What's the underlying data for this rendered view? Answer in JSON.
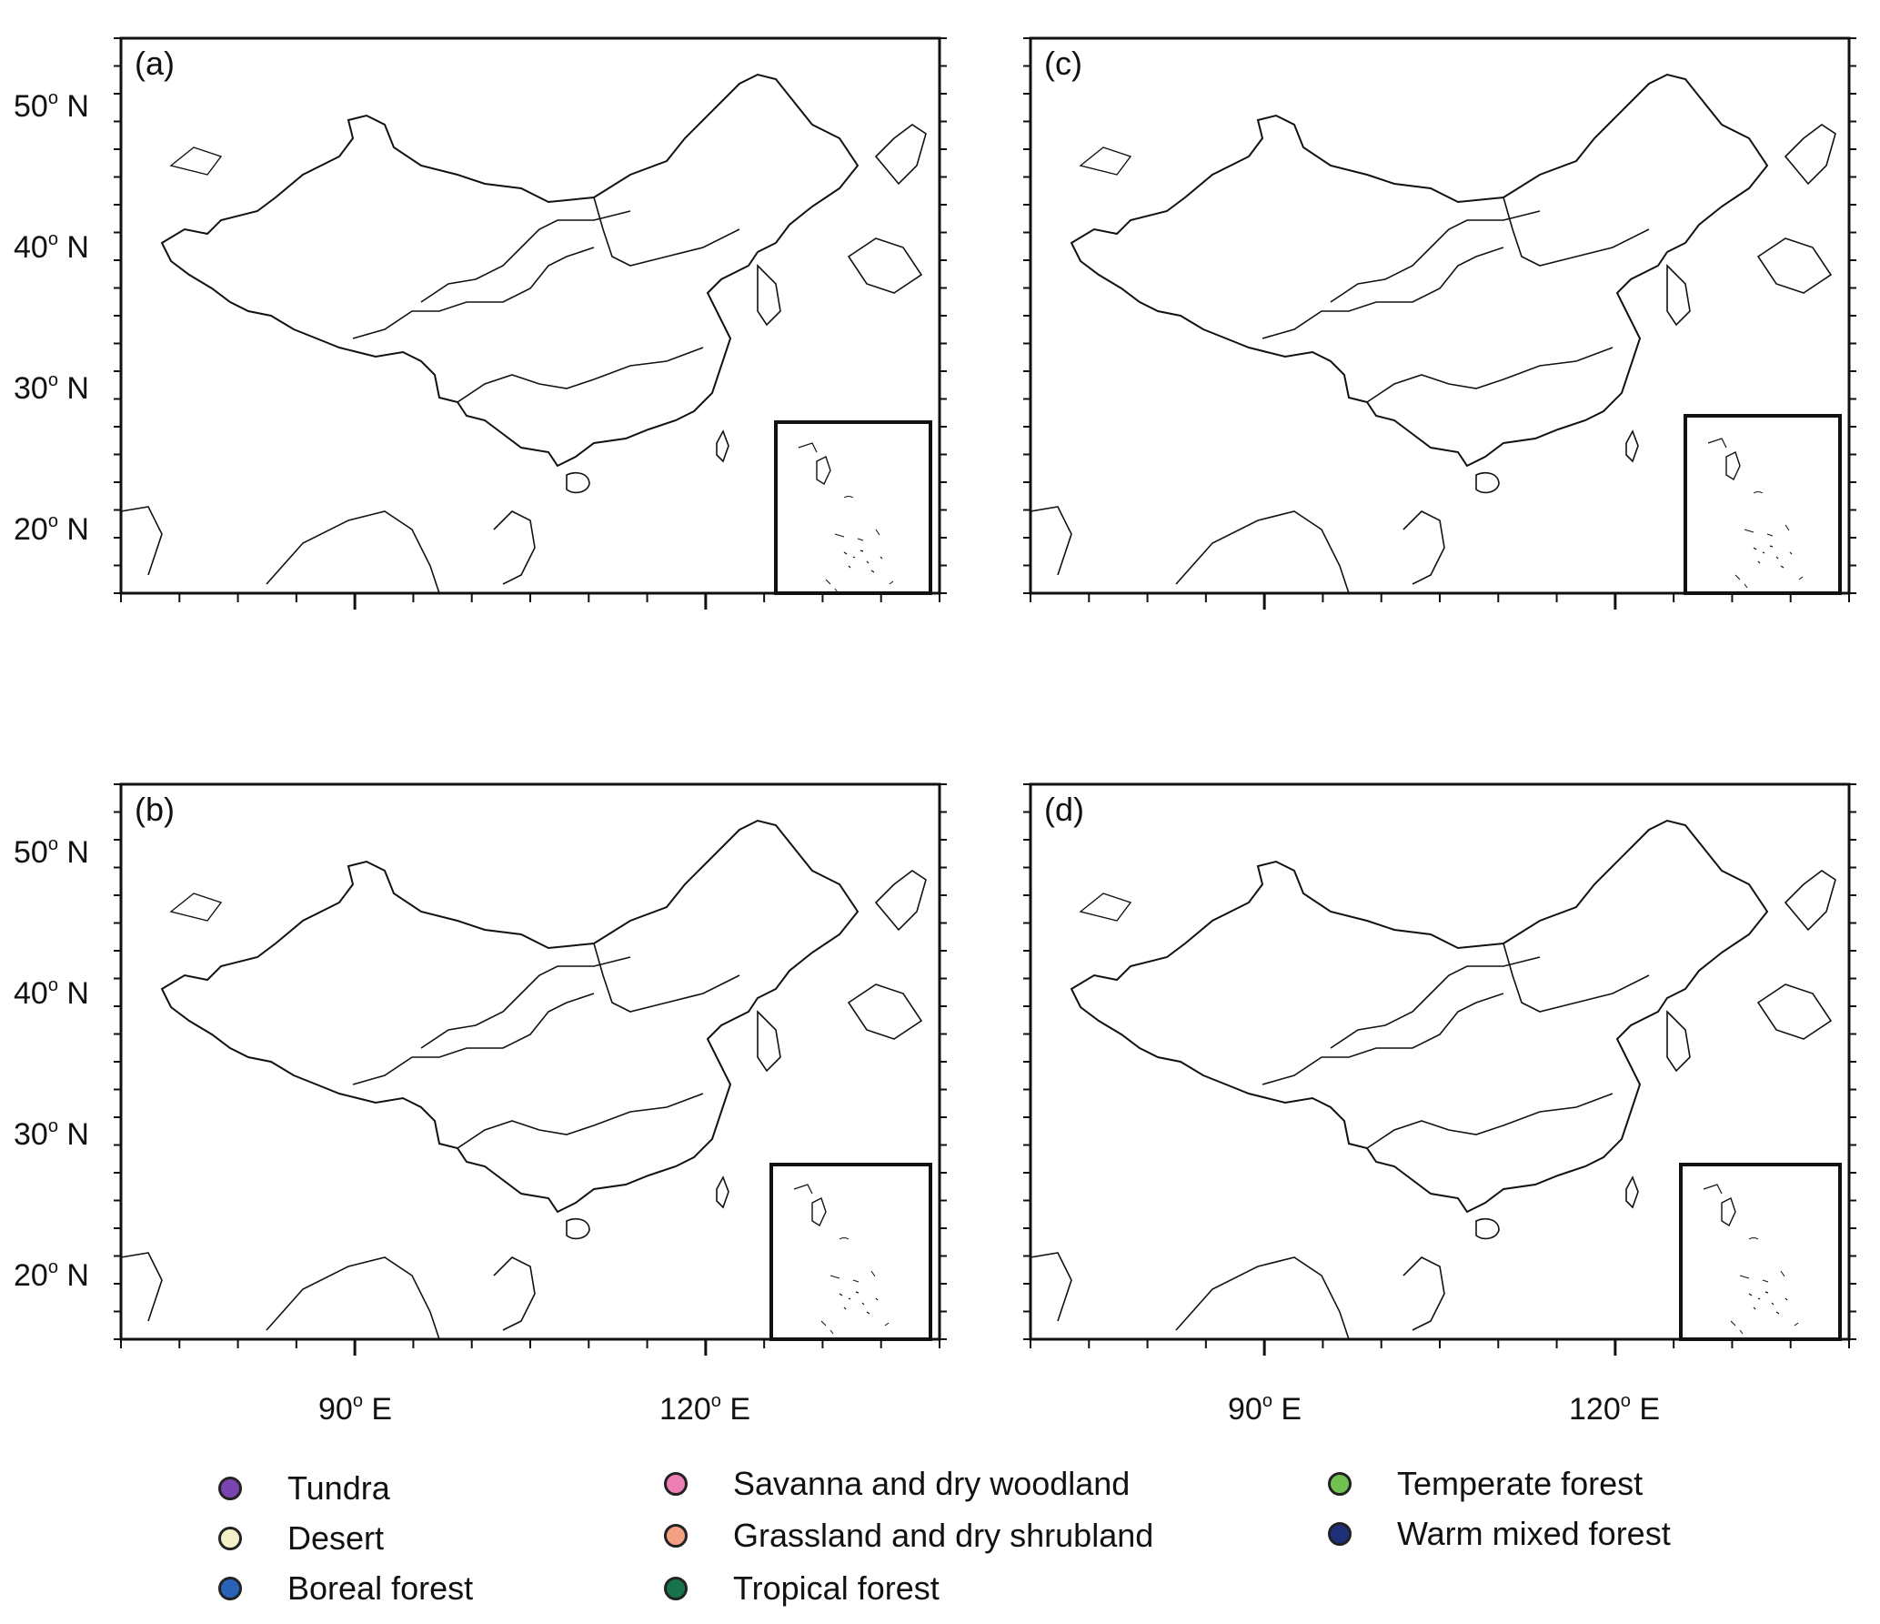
{
  "panels": [
    {
      "id": "a",
      "label": "(a)"
    },
    {
      "id": "b",
      "label": "(b)"
    },
    {
      "id": "c",
      "label": "(c)"
    },
    {
      "id": "d",
      "label": "(d)"
    }
  ],
  "axes": {
    "lat_ticks": [
      {
        "value": 50,
        "deg": "50",
        "hemi": "N"
      },
      {
        "value": 40,
        "deg": "40",
        "hemi": "N"
      },
      {
        "value": 30,
        "deg": "30",
        "hemi": "N"
      },
      {
        "value": 20,
        "deg": "20",
        "hemi": "N"
      }
    ],
    "lon_ticks": [
      {
        "value": 90,
        "deg": "90",
        "hemi": "E"
      },
      {
        "value": 120,
        "deg": "120",
        "hemi": "E"
      }
    ],
    "lon_range": [
      70,
      140
    ],
    "lat_range": [
      15,
      55
    ]
  },
  "legend": [
    {
      "key": "tundra",
      "label": "Tundra",
      "color": "#7a45b0"
    },
    {
      "key": "desert",
      "label": "Desert",
      "color": "#f3f0c8"
    },
    {
      "key": "boreal",
      "label": "Boreal forest",
      "color": "#2a62b8"
    },
    {
      "key": "savanna",
      "label": "Savanna and dry woodland",
      "color": "#ee7fb6"
    },
    {
      "key": "grassland",
      "label": "Grassland and dry shrubland",
      "color": "#f4a183"
    },
    {
      "key": "tropical",
      "label": "Tropical forest",
      "color": "#17744a"
    },
    {
      "key": "temperate",
      "label": "Temperate forest",
      "color": "#72c04f"
    },
    {
      "key": "warm",
      "label": "Warm mixed forest",
      "color": "#1f2f7a"
    }
  ]
}
